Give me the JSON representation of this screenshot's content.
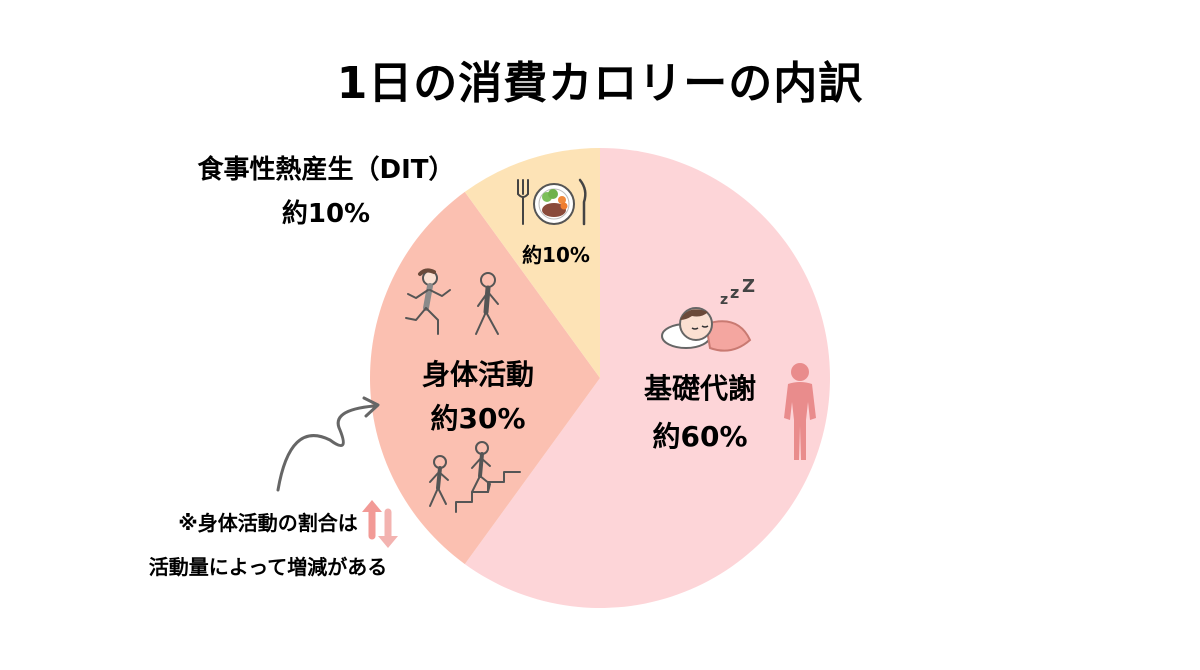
{
  "chart_data": {
    "type": "pie",
    "title": "1日の消費カロリーの内訳",
    "slices": [
      {
        "name": "基礎代謝",
        "value_label": "約60%",
        "value": 60,
        "color": "#fdd5d8"
      },
      {
        "name": "身体活動",
        "value_label": "約30%",
        "value": 30,
        "color": "#fbc0b1"
      },
      {
        "name": "",
        "value_label": "約10%",
        "value": 10,
        "color": "#fde3b6"
      }
    ],
    "start": "12 o'clock, clockwise",
    "legend": "none"
  },
  "callout": {
    "line1": "食事性熱産生（DIT）",
    "line2": "約10%"
  },
  "note": {
    "line1": "※身体活動の割合は",
    "line2": "活動量によって増減がある"
  },
  "icons": {
    "basal": "sleeping-person-icon",
    "body": "human-body-icon",
    "running": "running-person-icon",
    "walking": "walking-person-icon",
    "stairs": "climbing-stairs-icon",
    "meal": "meal-plate-icon",
    "arrows": "up-down-arrows-icon",
    "curve_arrow": "curved-arrow-icon"
  },
  "colors": {
    "basal_icon": "#e98c8c",
    "activity_icon": "#8a8a8a",
    "arrow_up": "#f29a96",
    "arrow_down": "#f29a96",
    "curve_arrow": "#666666"
  }
}
